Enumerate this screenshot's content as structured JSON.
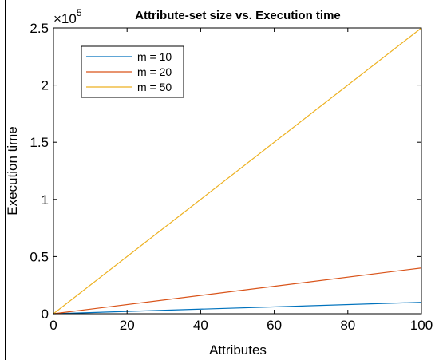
{
  "chart_data": {
    "type": "line",
    "title": "Attribute-set size vs. Execution time",
    "xlabel": "Attributes",
    "ylabel": "Execution time",
    "xlim": [
      0,
      100
    ],
    "ylim": [
      0,
      250000
    ],
    "y_exponent_label": "×10",
    "y_exponent_power": "5",
    "x_ticks": [
      0,
      20,
      40,
      60,
      80,
      100
    ],
    "x_tick_labels": [
      "0",
      "20",
      "40",
      "60",
      "80",
      "100"
    ],
    "y_ticks": [
      0,
      50000,
      100000,
      150000,
      200000,
      250000
    ],
    "y_tick_labels": [
      "0",
      "0.5",
      "1",
      "1.5",
      "2",
      "2.5"
    ],
    "grid": false,
    "legend_position": "top-left",
    "series": [
      {
        "name": "m = 10",
        "color": "#0072bd",
        "x": [
          0,
          100
        ],
        "y": [
          0,
          10000
        ]
      },
      {
        "name": "m = 20",
        "color": "#d95319",
        "x": [
          0,
          100
        ],
        "y": [
          0,
          40000
        ]
      },
      {
        "name": "m = 50",
        "color": "#edb120",
        "x": [
          0,
          100
        ],
        "y": [
          0,
          250000
        ]
      }
    ]
  }
}
